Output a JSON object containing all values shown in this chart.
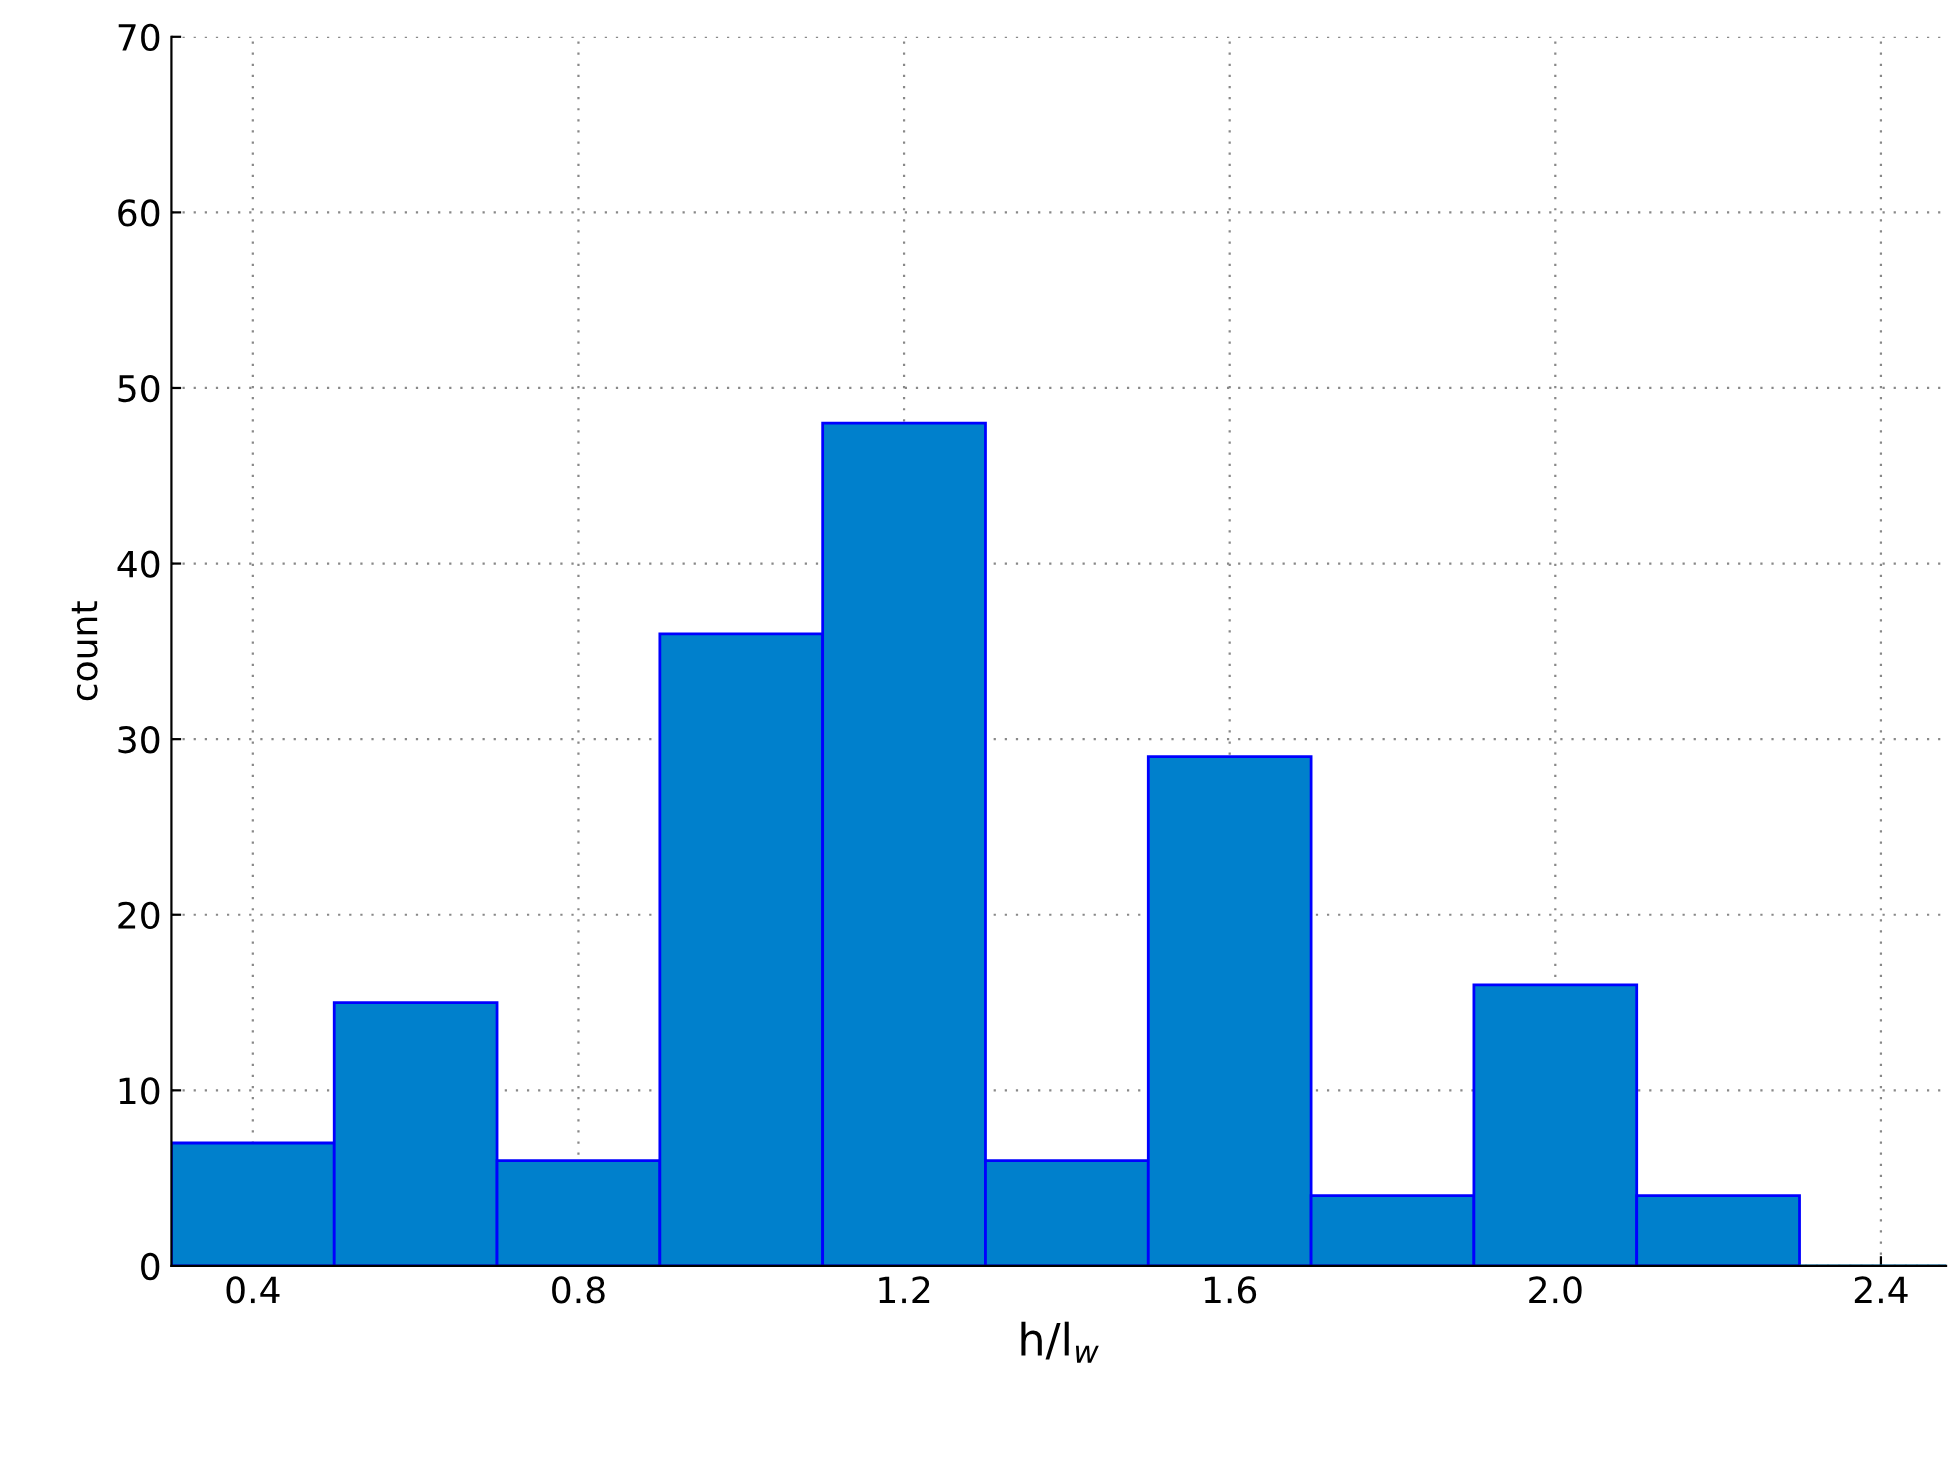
{
  "chart_data": {
    "type": "histogram",
    "xlabel": "h/l$_{w}$",
    "ylabel": "count",
    "bins": [
      0.3,
      0.5,
      0.7,
      0.9,
      1.1,
      1.3,
      1.5,
      1.7,
      1.9,
      2.1,
      2.3,
      2.5
    ],
    "values": [
      7,
      15,
      6,
      36,
      48,
      6,
      29,
      4,
      16,
      4,
      0
    ],
    "color": "#0080cc",
    "xlim": [
      0.3,
      2.48
    ],
    "xticks": [
      {
        "value": 0.4,
        "label": "0.4"
      },
      {
        "value": 0.8,
        "label": "0.8"
      },
      {
        "value": 1.2,
        "label": "1.2"
      },
      {
        "value": 1.6,
        "label": "1.6"
      },
      {
        "value": 2.0,
        "label": "2.0"
      },
      {
        "value": 2.4,
        "label": "2.4"
      }
    ],
    "ylim": [
      0,
      70
    ],
    "yticks": [
      0,
      10,
      20,
      30,
      40,
      50,
      60,
      70
    ],
    "grid": true
  }
}
